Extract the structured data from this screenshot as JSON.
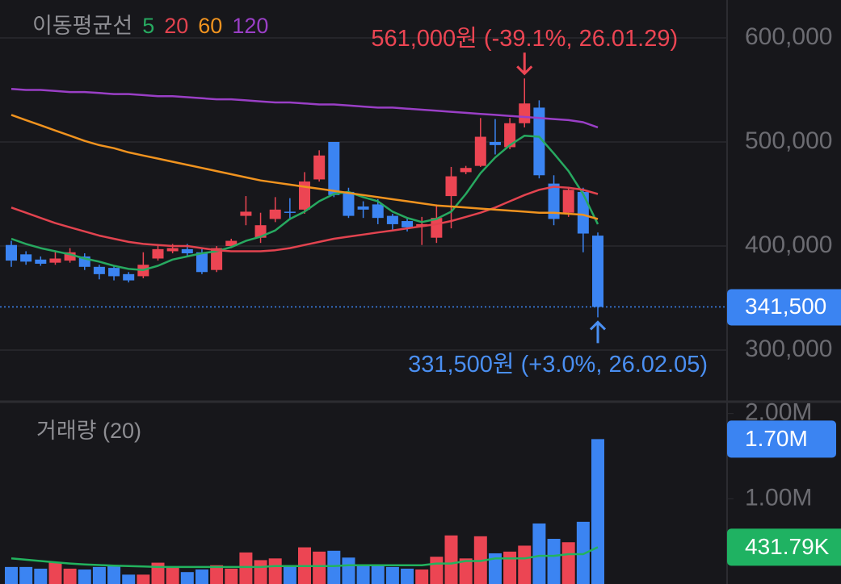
{
  "chart_data": [
    {
      "type": "candlestick",
      "legend_title": "이동평균선",
      "up_color": "#ec4553",
      "down_color": "#3b84f2",
      "open": [
        401000,
        392000,
        387000,
        384000,
        386000,
        390000,
        380000,
        379000,
        373000,
        371000,
        388000,
        395000,
        397000,
        394000,
        377000,
        400000,
        429000,
        408000,
        426000,
        433000,
        435000,
        464000,
        500000,
        452000,
        438000,
        440000,
        429000,
        424000,
        419000,
        408000,
        448000,
        471000,
        477000,
        500000,
        495000,
        518000,
        533000,
        460000,
        432000,
        452000,
        410000
      ],
      "high": [
        405000,
        395000,
        390000,
        395000,
        398000,
        393000,
        382000,
        381000,
        375000,
        394000,
        400000,
        402000,
        402000,
        397000,
        400000,
        407000,
        448000,
        432000,
        447000,
        446000,
        471000,
        492000,
        500000,
        456000,
        443000,
        445000,
        431000,
        427000,
        428000,
        440000,
        476000,
        477000,
        523000,
        522000,
        523000,
        561000,
        540000,
        468000,
        457000,
        456000,
        413000
      ],
      "low": [
        380000,
        382000,
        381000,
        382000,
        384000,
        377000,
        368000,
        367000,
        365000,
        369000,
        386000,
        393000,
        390000,
        373000,
        375000,
        398000,
        420000,
        403000,
        423000,
        425000,
        431000,
        462000,
        447000,
        427000,
        427000,
        421000,
        416000,
        414000,
        401000,
        403000,
        417000,
        469000,
        476000,
        488000,
        493000,
        514000,
        465000,
        420000,
        428000,
        394000,
        331500
      ],
      "close": [
        386000,
        385000,
        383000,
        388000,
        394000,
        380000,
        373000,
        371000,
        367000,
        382000,
        397000,
        398000,
        393000,
        375000,
        398000,
        405000,
        433000,
        420000,
        435000,
        432000,
        462000,
        487000,
        449000,
        429000,
        435000,
        427000,
        421000,
        418000,
        421000,
        427000,
        467000,
        475000,
        505000,
        497000,
        518000,
        537000,
        468000,
        426000,
        454000,
        412000,
        341500
      ],
      "series": [
        {
          "name": "5",
          "color": "#27a960",
          "values": [
            407000,
            402000,
            398000,
            395000,
            392000,
            388000,
            385000,
            381000,
            378000,
            377000,
            381000,
            387000,
            390000,
            393000,
            395000,
            399000,
            405000,
            409000,
            415000,
            426000,
            433000,
            443000,
            450000,
            452000,
            447000,
            443000,
            433000,
            427000,
            423000,
            426000,
            433000,
            450000,
            470000,
            485000,
            497000,
            506000,
            505000,
            489000,
            472000,
            450000,
            421000
          ]
        },
        {
          "name": "20",
          "color": "#e2434f",
          "values": [
            437000,
            432000,
            427000,
            422000,
            418000,
            414000,
            410000,
            407000,
            404000,
            402000,
            401000,
            400000,
            400000,
            398000,
            396000,
            395000,
            395000,
            395000,
            396000,
            398000,
            401000,
            404000,
            407000,
            409000,
            411000,
            413000,
            415000,
            417000,
            419000,
            421000,
            424000,
            428000,
            432000,
            437000,
            443000,
            449000,
            454000,
            457000,
            456000,
            454000,
            450000
          ]
        },
        {
          "name": "60",
          "color": "#f0931f",
          "values": [
            526000,
            521000,
            516000,
            511000,
            506000,
            501000,
            497000,
            494000,
            490000,
            487000,
            484000,
            481000,
            478000,
            475000,
            472000,
            469000,
            466000,
            463000,
            461000,
            459000,
            457000,
            455000,
            453000,
            451000,
            449000,
            447000,
            445000,
            443000,
            441000,
            439000,
            438000,
            437000,
            436000,
            435000,
            434000,
            433000,
            432000,
            432000,
            431000,
            430000,
            426000
          ]
        },
        {
          "name": "120",
          "color": "#9a3fc6",
          "values": [
            551000,
            550000,
            550000,
            549000,
            548000,
            548000,
            547000,
            546000,
            546000,
            545000,
            544000,
            544000,
            543000,
            542000,
            541000,
            541000,
            540000,
            539000,
            538000,
            538000,
            537000,
            536000,
            536000,
            535000,
            534000,
            533000,
            533000,
            532000,
            531000,
            530000,
            529000,
            528000,
            527000,
            526000,
            525000,
            524000,
            523000,
            522000,
            521000,
            519000,
            514000
          ]
        }
      ],
      "ylim": [
        251200,
        636400
      ],
      "yticks": [
        {
          "value": 300000,
          "label": "300,000"
        },
        {
          "value": 400000,
          "label": "400,000"
        },
        {
          "value": 500000,
          "label": "500,000"
        },
        {
          "value": 600000,
          "label": "600,000"
        }
      ],
      "grid": true,
      "annotations": [
        {
          "text": "561,000원 (-39.1%, 26.01.29)",
          "color": "#ec4553"
        },
        {
          "text": "331,500원 (+3.0%, 26.02.05)",
          "color": "#4a8ff2"
        }
      ],
      "price_tag": {
        "value": 341500,
        "label": "341,500",
        "color": "#3b84f2"
      }
    },
    {
      "type": "bar",
      "title": "거래량 (20)",
      "values": [
        200000,
        200000,
        180000,
        260000,
        180000,
        170000,
        200000,
        220000,
        110000,
        110000,
        250000,
        200000,
        140000,
        170000,
        220000,
        180000,
        370000,
        280000,
        300000,
        200000,
        430000,
        380000,
        390000,
        310000,
        230000,
        210000,
        200000,
        180000,
        170000,
        320000,
        570000,
        300000,
        560000,
        360000,
        380000,
        450000,
        710000,
        530000,
        490000,
        730000,
        1700000
      ],
      "line": {
        "color": "#22b35e",
        "values": [
          300000,
          285000,
          270000,
          255000,
          240000,
          230000,
          222000,
          215000,
          210000,
          205000,
          200000,
          200000,
          200000,
          200000,
          200000,
          200000,
          200000,
          200000,
          210000,
          210000,
          210000,
          210000,
          210000,
          220000,
          220000,
          220000,
          220000,
          220000,
          220000,
          240000,
          240000,
          270000,
          270000,
          300000,
          300000,
          300000,
          330000,
          330000,
          350000,
          350000,
          431790
        ]
      },
      "ylim": [
        0,
        2120000
      ],
      "yticks": [
        {
          "value": 1000000,
          "label": "1.00M"
        },
        {
          "value": 2000000,
          "label": "2.00M"
        }
      ],
      "volume_tag": {
        "value": 1700000,
        "label": "1.70M",
        "color": "#3b84f2"
      },
      "line_tag": {
        "value": 431790,
        "label": "431.79K",
        "color": "#1fb262"
      }
    }
  ]
}
